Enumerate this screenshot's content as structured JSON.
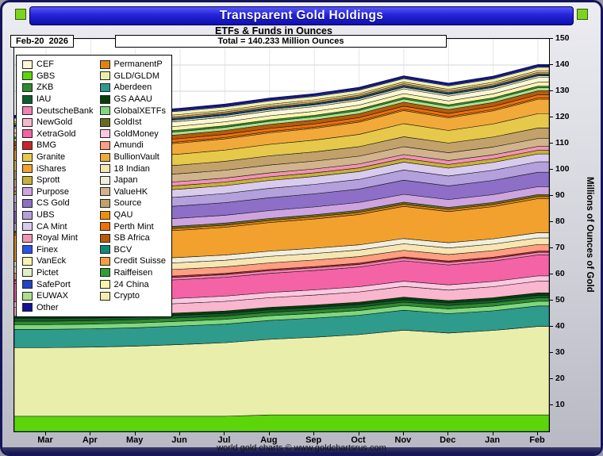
{
  "window": {
    "title": "Transparent Gold Holdings",
    "subtitle": "ETFs & Funds in Ounces",
    "footer": "world gold charts © www.goldchartsrus.com"
  },
  "info": {
    "date_label": "Feb-20  2026",
    "total_label": "Total = 140.233 Million Ounces"
  },
  "axis": {
    "y_label": "Millions of Ounces of Gold",
    "y_ticks": [
      150,
      140,
      130,
      120,
      110,
      100,
      90,
      80,
      70,
      60,
      50,
      40,
      30,
      20,
      10
    ],
    "x_ticks": [
      "Mar",
      "Apr",
      "May",
      "Jun",
      "Jul",
      "Aug",
      "Sep",
      "Oct",
      "Nov",
      "Dec",
      "Jan",
      "Feb"
    ]
  },
  "legend": {
    "col1": [
      "CEF",
      "GBS",
      "ZKB",
      "IAU",
      "DeutscheBank",
      "NewGold",
      "XetraGold",
      "BMG",
      "Granite",
      "iShares",
      "Sprott",
      "Purpose",
      "CS Gold",
      "UBS",
      "CA Mint",
      "Royal Mint",
      "Finex",
      "VanEck",
      "Pictet",
      "SafePort",
      "EUWAX",
      "Other"
    ],
    "col2": [
      "PermanentP",
      "GLD/GLDM",
      "Aberdeen",
      "GS AAAU",
      "GlobalXETFs",
      "GoldIst",
      "GoldMoney",
      "Amundi",
      "BullionVault",
      "18 Indian",
      "Japan",
      "ValueHK",
      "Source",
      "QAU",
      "Perth Mint",
      "SB Africa",
      "BCV",
      "Credit Suisse",
      "Raiffeisen",
      "24 China",
      "Crypto"
    ]
  },
  "chart_data": {
    "type": "area",
    "stacked": true,
    "title": "Transparent Gold Holdings",
    "subtitle": "ETFs & Funds in Ounces",
    "total_feb": 140.233,
    "ylim": [
      0,
      150
    ],
    "ylabel": "Millions of Ounces of Gold",
    "x_labels": [
      "Mar",
      "Apr",
      "May",
      "Jun",
      "Jul",
      "Aug",
      "Sep",
      "Oct",
      "Nov",
      "Dec",
      "Jan",
      "Feb"
    ],
    "note": "values in millions of ounces; constant number = flat series across all months; stack order bottom to top",
    "series": [
      {
        "name": "GBS",
        "color": "#5cd60a",
        "values": [
          5.8,
          5.8,
          5.8,
          5.8,
          5.8,
          6.3,
          6.3,
          6.3,
          6.3,
          6.3,
          6.3,
          6.3
        ]
      },
      {
        "name": "GLD/GLDM",
        "color": "#e9efab",
        "values": [
          26.2,
          26.4,
          26.8,
          27.4,
          28.1,
          28.9,
          29.7,
          30.7,
          32.4,
          31.3,
          32.3,
          33.833
        ]
      },
      {
        "name": "Aberdeen",
        "color": "#2e9b8c",
        "values": [
          7.0,
          7.0,
          7.0,
          7.1,
          7.1,
          7.2,
          7.3,
          7.4,
          7.6,
          7.4,
          7.5,
          7.8
        ]
      },
      {
        "name": "GlobalXETFs",
        "color": "#7ed87e",
        "values": 1.8
      },
      {
        "name": "ZKB",
        "color": "#2e8b2e",
        "values": 1.3
      },
      {
        "name": "IAU",
        "color": "#0f5c2e",
        "values": 1.0
      },
      {
        "name": "GS AAAU",
        "color": "#063f06",
        "values": 0.9
      },
      {
        "name": "NewGold",
        "color": "#f9b6ce",
        "values": [
          3.5,
          3.5,
          3.6,
          3.6,
          3.7,
          3.7,
          3.8,
          3.9,
          4.1,
          4.0,
          4.2,
          4.5
        ]
      },
      {
        "name": "GoldMoney",
        "color": "#fcc8e0",
        "values": 2.0
      },
      {
        "name": "XetraGold",
        "color": "#f463a5",
        "values": [
          7.0,
          7.0,
          7.1,
          7.1,
          7.2,
          7.3,
          7.4,
          7.5,
          7.8,
          7.6,
          7.8,
          8.0
        ]
      },
      {
        "name": "DeutscheBank",
        "color": "#ee82b4",
        "values": 1.0
      },
      {
        "name": "BMG",
        "color": "#c62828",
        "values": 0.5
      },
      {
        "name": "Amundi",
        "color": "#ff9e80",
        "values": 2.5
      },
      {
        "name": "18 Indian",
        "color": "#f6e6b2",
        "values": 2.5
      },
      {
        "name": "Japan",
        "color": "#f1eedd",
        "values": 2.0
      },
      {
        "name": "iShares",
        "color": "#f2a12e",
        "values": [
          10.0,
          10.1,
          10.2,
          10.4,
          10.6,
          10.9,
          11.2,
          11.6,
          12.3,
          11.9,
          12.3,
          13.0
        ]
      },
      {
        "name": "PermanentP",
        "color": "#de8510",
        "values": 0.8
      },
      {
        "name": "GoldIst",
        "color": "#6b6b1f",
        "values": 0.8
      },
      {
        "name": "Purpose",
        "color": "#cda4e0",
        "values": 3.0
      },
      {
        "name": "CS Gold",
        "color": "#8d6fc8",
        "values": [
          4.5,
          4.5,
          4.6,
          4.7,
          4.8,
          4.9,
          5.0,
          5.1,
          5.4,
          5.2,
          5.4,
          5.5
        ]
      },
      {
        "name": "UBS",
        "color": "#b4a0dc",
        "values": [
          3.3,
          3.3,
          3.4,
          3.4,
          3.5,
          3.6,
          3.6,
          3.7,
          3.9,
          3.8,
          3.9,
          4.0
        ]
      },
      {
        "name": "CA Mint",
        "color": "#d9cbee",
        "values": 3.0
      },
      {
        "name": "Sprott",
        "color": "#c9b037",
        "values": 1.4
      },
      {
        "name": "Royal Mint",
        "color": "#f193b4",
        "values": 1.5
      },
      {
        "name": "ValueHK",
        "color": "#d2b48c",
        "values": 3.0
      },
      {
        "name": "Source",
        "color": "#c2a26a",
        "values": [
          3.2,
          3.2,
          3.3,
          3.3,
          3.4,
          3.5,
          3.5,
          3.6,
          3.8,
          3.7,
          3.8,
          4.0
        ]
      },
      {
        "name": "Granite",
        "color": "#e6c84b",
        "values": [
          4.0,
          4.0,
          4.1,
          4.2,
          4.3,
          4.4,
          4.5,
          4.7,
          5.0,
          4.8,
          5.0,
          5.5
        ]
      },
      {
        "name": "BullionVault",
        "color": "#f1a93a",
        "values": [
          4.0,
          4.0,
          4.1,
          4.2,
          4.3,
          4.4,
          4.5,
          4.7,
          5.0,
          4.8,
          5.0,
          5.5
        ]
      },
      {
        "name": "QAU",
        "color": "#ef8e0e",
        "values": 0.5
      },
      {
        "name": "Perth Mint",
        "color": "#ee6f0d",
        "values": 1.2
      },
      {
        "name": "SB Africa",
        "color": "#b65c09",
        "values": 1.5
      },
      {
        "name": "EUWAX",
        "color": "#aede8d",
        "values": 1.2
      },
      {
        "name": "Raiffeisen",
        "color": "#2f9e33",
        "values": 0.6
      },
      {
        "name": "VanEck",
        "color": "#fcf3b0",
        "values": 1.5
      },
      {
        "name": "CEF",
        "color": "#fbf7d5",
        "values": 1.8
      },
      {
        "name": "Pictet",
        "color": "#e3f0c4",
        "values": 0.6
      },
      {
        "name": "SafePort",
        "color": "#2143c8",
        "values": 0.4
      },
      {
        "name": "BCV",
        "color": "#0d8a78",
        "values": 0.4
      },
      {
        "name": "Credit Suisse",
        "color": "#f5a045",
        "values": 0.6
      },
      {
        "name": "24 China",
        "color": "#fdf6a8",
        "values": 0.6
      },
      {
        "name": "Crypto",
        "color": "#f3edae",
        "values": 1.3
      },
      {
        "name": "Finex",
        "color": "#2a52e8",
        "values": 0.4
      },
      {
        "name": "Other",
        "color": "#12129b",
        "values": 0.7
      }
    ]
  }
}
